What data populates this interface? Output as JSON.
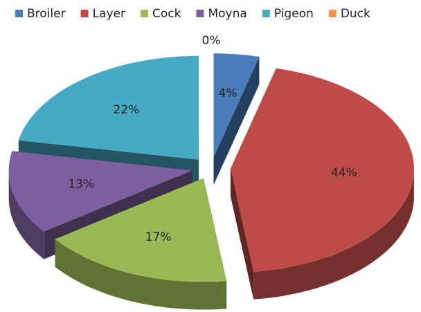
{
  "chart_data": {
    "type": "pie",
    "categories": [
      "Broiler",
      "Layer",
      "Cock",
      "Moyna",
      "Pigeon",
      "Duck"
    ],
    "values": [
      4,
      44,
      17,
      13,
      22,
      0
    ],
    "value_labels": [
      "4%",
      "44%",
      "17%",
      "13%",
      "22%",
      "0%"
    ],
    "colors": [
      "#4a7ebb",
      "#be4b48",
      "#98b954",
      "#7d60a0",
      "#46aac5",
      "#f79646"
    ],
    "legend": "top"
  }
}
